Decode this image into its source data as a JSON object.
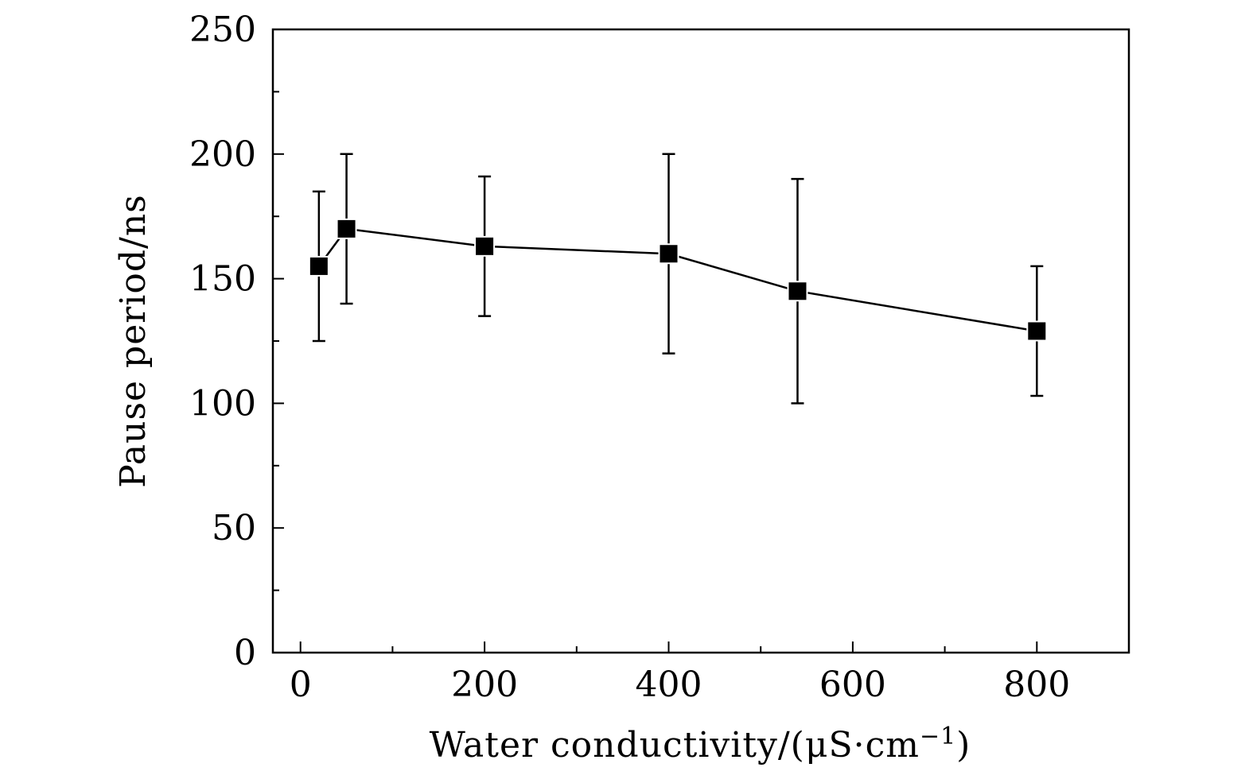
{
  "chart_data": {
    "type": "scatter",
    "title": "",
    "xlabel": "Water conductivity/(μS·cm−1)",
    "xlabel_parts": {
      "main": "Water conductivity/(μS·cm",
      "superscript": "−1",
      "close": ")"
    },
    "ylabel": "Pause period/ns",
    "xlim": [
      -30,
      900
    ],
    "ylim": [
      0,
      250
    ],
    "x_ticks": [
      0,
      200,
      400,
      600,
      800
    ],
    "x_tick_labels": [
      "0",
      "200",
      "400",
      "600",
      "800"
    ],
    "x_minor_ticks": [
      100,
      300,
      500,
      700
    ],
    "y_ticks": [
      0,
      50,
      100,
      150,
      200,
      250
    ],
    "y_tick_labels": [
      "0",
      "50",
      "100",
      "150",
      "200",
      "250"
    ],
    "y_minor_ticks": [
      25,
      75,
      125,
      175,
      225
    ],
    "grid": false,
    "marker": "square",
    "line": "solid",
    "series": [
      {
        "name": "Pause period",
        "x": [
          20,
          50,
          200,
          400,
          540,
          800
        ],
        "y": [
          155,
          170,
          163,
          160,
          145,
          129
        ],
        "err_low": [
          125,
          140,
          135,
          120,
          100,
          103
        ],
        "err_high": [
          185,
          200,
          191,
          200,
          190,
          155
        ]
      }
    ]
  }
}
